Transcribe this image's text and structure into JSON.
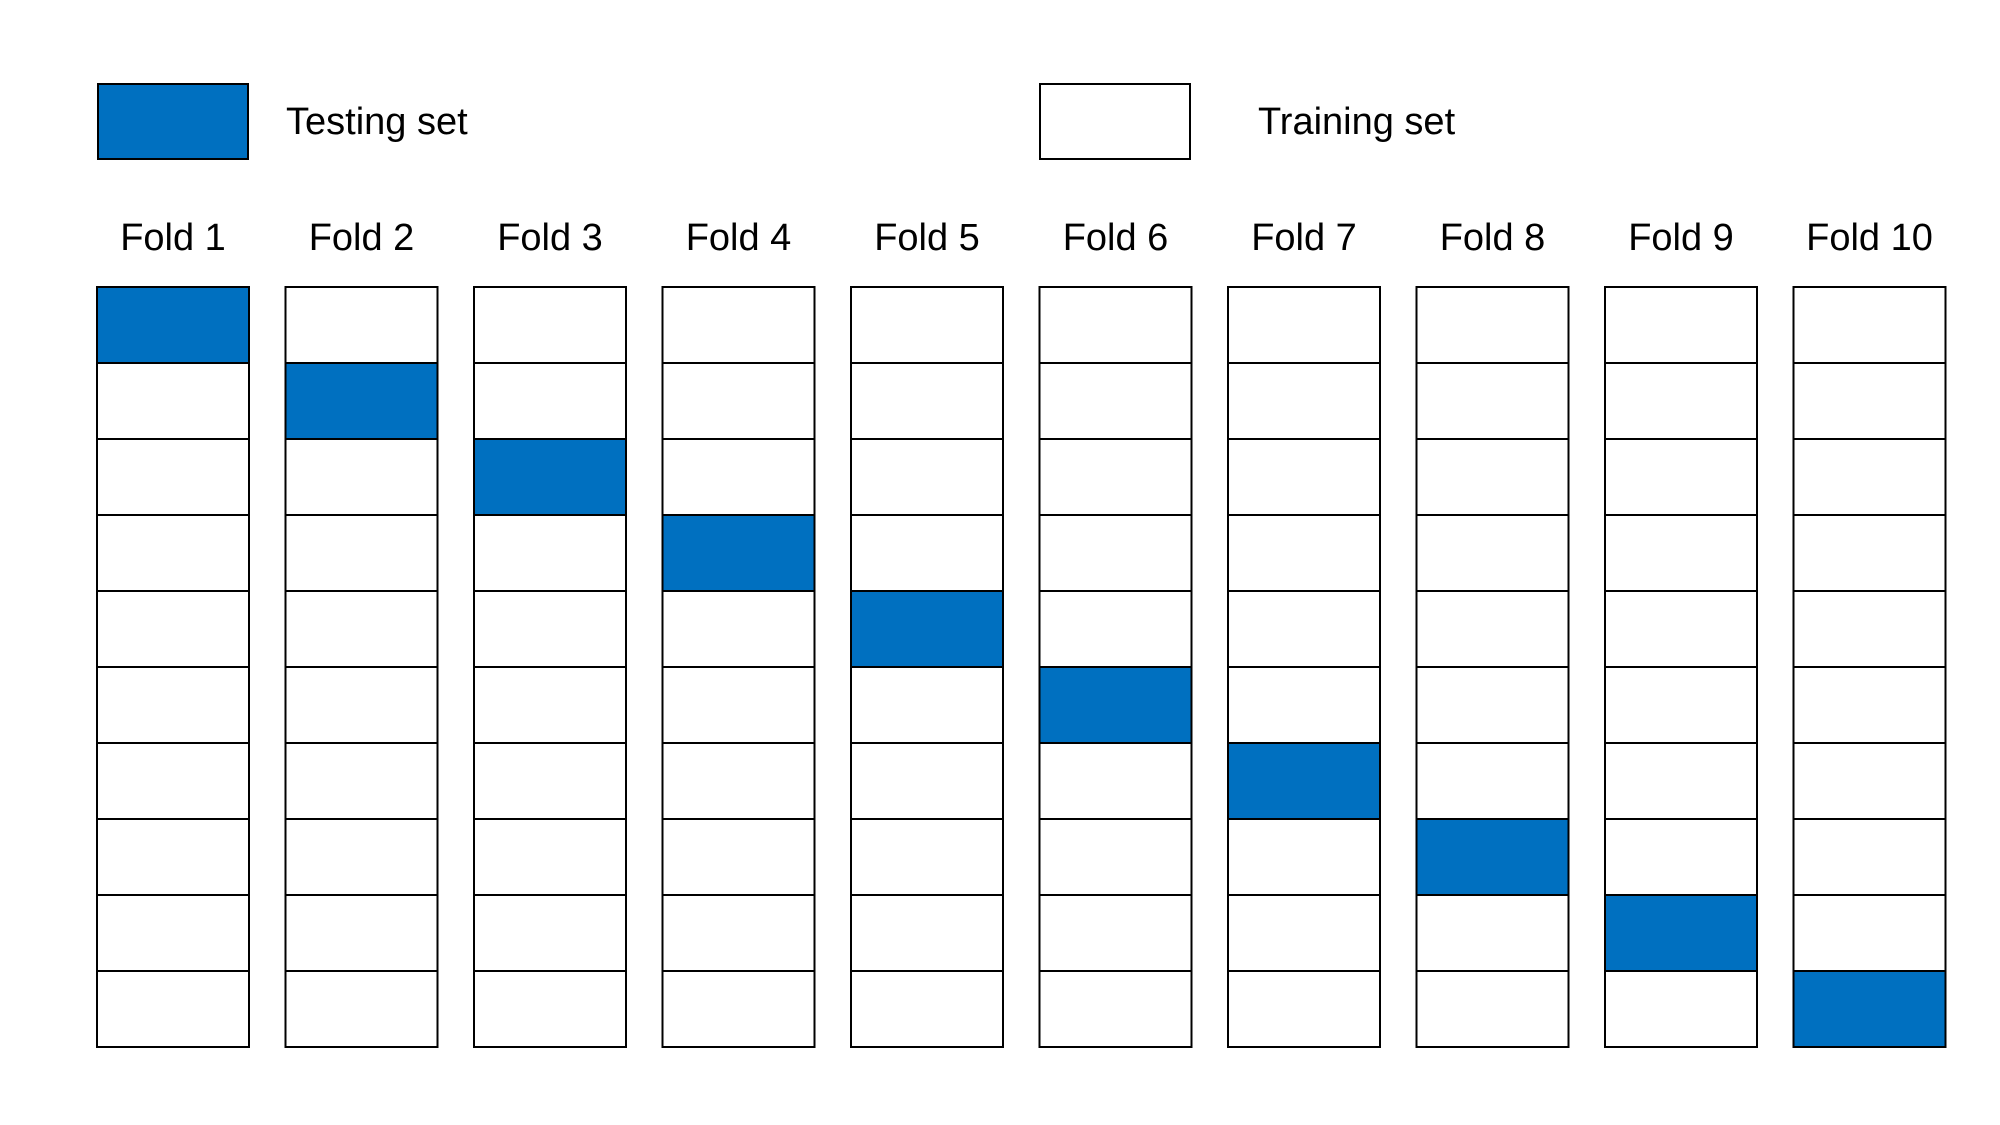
{
  "legend": {
    "testing": {
      "label": "Testing set",
      "color": "#0070C0"
    },
    "training": {
      "label": "Training set",
      "color": "#FFFFFF"
    }
  },
  "grid": {
    "rows_per_fold": 10,
    "border_color": "#000000"
  },
  "folds": [
    {
      "label": "Fold 1",
      "test_row": 1
    },
    {
      "label": "Fold 2",
      "test_row": 2
    },
    {
      "label": "Fold 3",
      "test_row": 3
    },
    {
      "label": "Fold 4",
      "test_row": 4
    },
    {
      "label": "Fold 5",
      "test_row": 5
    },
    {
      "label": "Fold 6",
      "test_row": 6
    },
    {
      "label": "Fold 7",
      "test_row": 7
    },
    {
      "label": "Fold 8",
      "test_row": 8
    },
    {
      "label": "Fold 9",
      "test_row": 9
    },
    {
      "label": "Fold 10",
      "test_row": 10
    }
  ]
}
